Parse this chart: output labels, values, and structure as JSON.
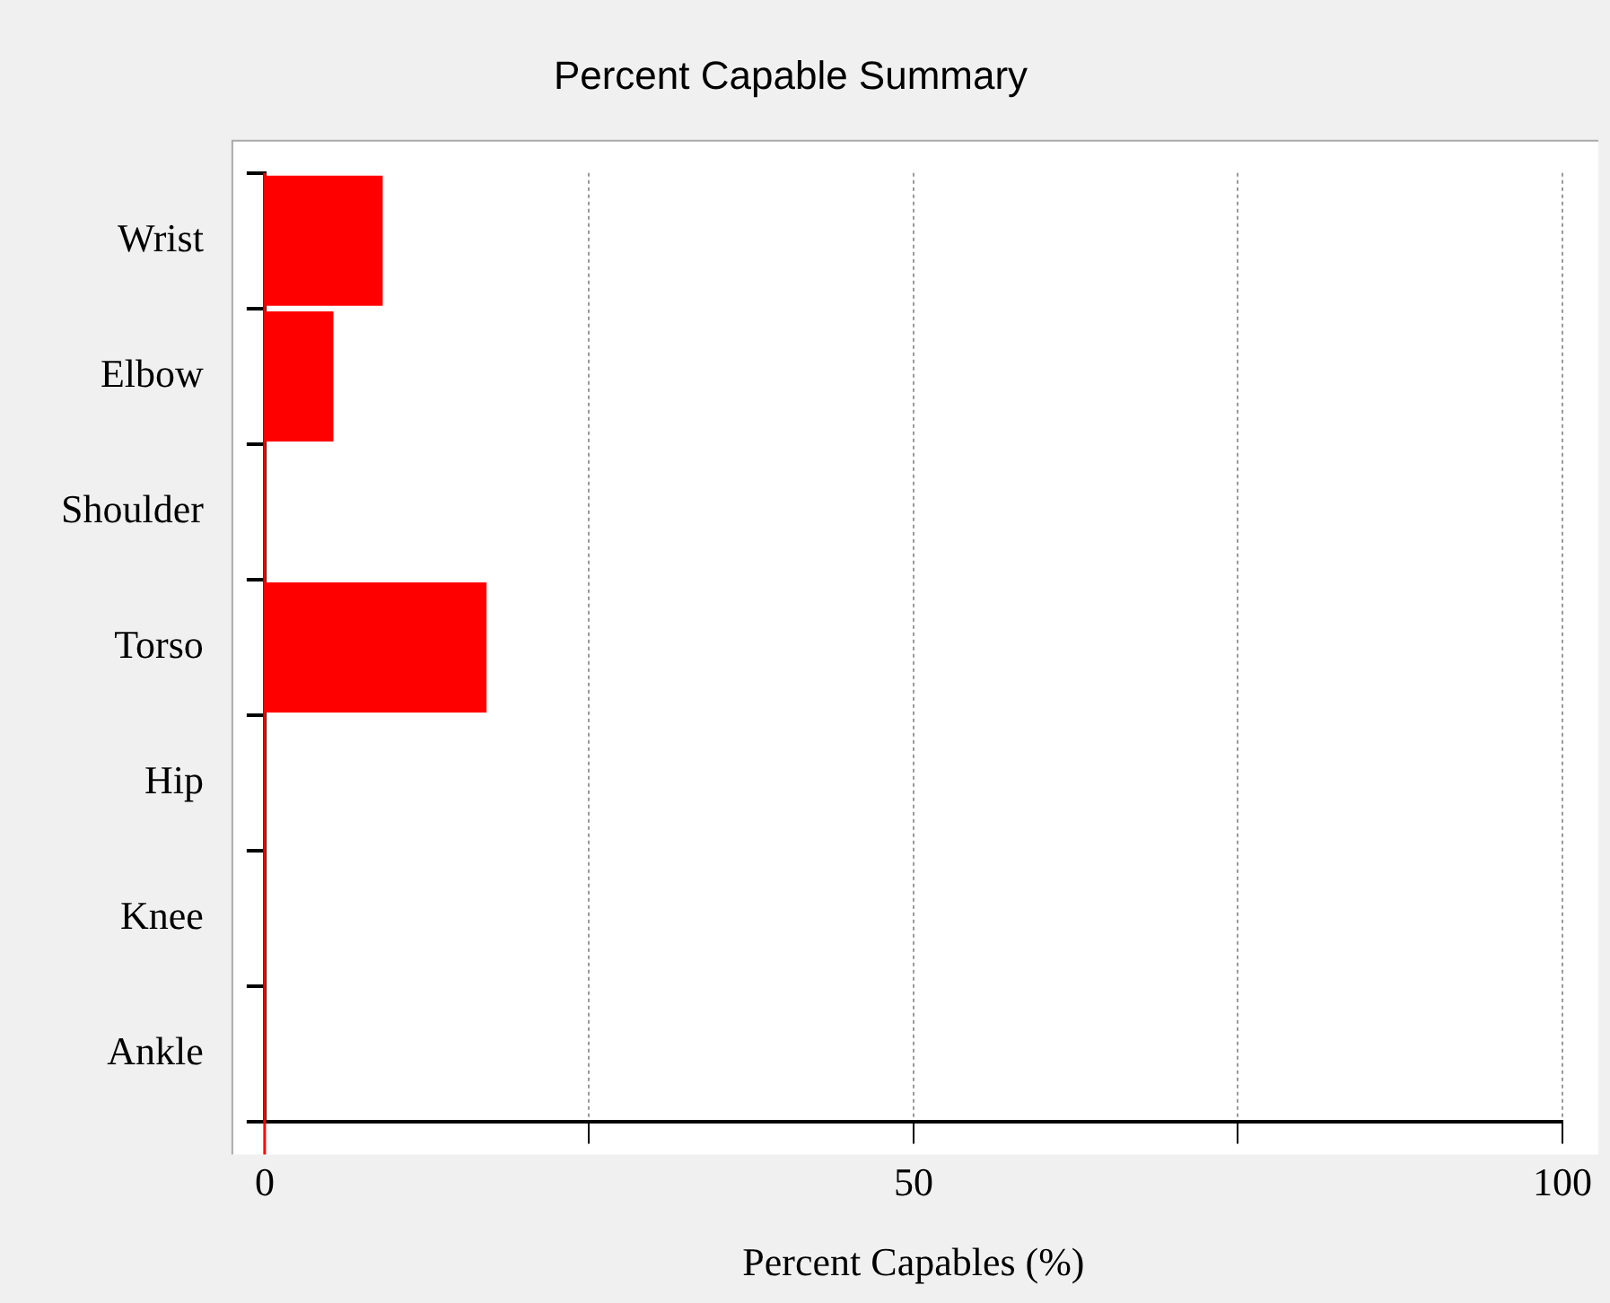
{
  "chart_data": {
    "type": "bar",
    "orientation": "horizontal",
    "title": "Percent Capable Summary",
    "xlabel": "Percent Capables (%)",
    "categories": [
      "Wrist",
      "Elbow",
      "Shoulder",
      "Torso",
      "Hip",
      "Knee",
      "Ankle"
    ],
    "values": [
      9.1,
      5.3,
      0,
      17.1,
      0,
      0,
      0
    ],
    "color": "#ff0000",
    "xlim": [
      0,
      100
    ],
    "xticks": [
      0,
      {
        "value": 25,
        "label": null
      },
      50,
      {
        "value": 75,
        "label": null
      },
      100
    ],
    "grid": "x",
    "legend": false
  }
}
